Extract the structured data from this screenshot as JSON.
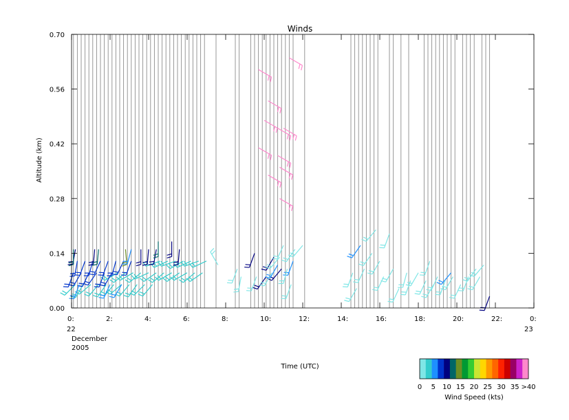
{
  "chart_data": {
    "type": "wind-barb-profile",
    "title": "Winds",
    "xlabel": "Time (UTC)",
    "ylabel": "Altitude (km)",
    "xlim_hours": [
      0,
      24
    ],
    "ylim": [
      0.0,
      0.7
    ],
    "x_tick_labels": [
      "0:",
      "2:",
      "4:",
      "6:",
      "8:",
      "10:",
      "12:",
      "14:",
      "16:",
      "18:",
      "20:",
      "22:",
      "0:"
    ],
    "y_tick_labels": [
      "0.00",
      "0.14",
      "0.28",
      "0.42",
      "0.56",
      "0.70"
    ],
    "date_labels": {
      "start_day": "22",
      "end_day": "23",
      "month": "December",
      "year": "2005"
    },
    "profile_times_hours": [
      0.1,
      0.3,
      0.5,
      0.7,
      0.9,
      1.1,
      1.3,
      1.5,
      1.7,
      1.9,
      2.1,
      2.3,
      2.5,
      2.7,
      2.9,
      3.1,
      3.3,
      3.5,
      3.7,
      3.9,
      4.1,
      4.3,
      4.5,
      4.7,
      4.9,
      5.1,
      5.3,
      5.5,
      5.7,
      5.9,
      6.1,
      6.3,
      6.5,
      6.7,
      6.9,
      7.5,
      8.5,
      8.7,
      9.3,
      9.5,
      9.7,
      9.9,
      10.1,
      10.3,
      10.5,
      10.7,
      10.9,
      11.1,
      11.3,
      11.5,
      12.1,
      14.5,
      14.7,
      14.9,
      15.1,
      15.3,
      15.5,
      15.7,
      15.9,
      16.5,
      16.7,
      17.1,
      17.5,
      18.3,
      18.5,
      18.7,
      18.9,
      19.1,
      19.3,
      19.5,
      19.7,
      19.9,
      20.3,
      20.5,
      20.7,
      20.9,
      21.3,
      21.5,
      21.7
    ],
    "colorbar": {
      "title": "Wind Speed (kts)",
      "colors": [
        "#7fe6e6",
        "#33cccc",
        "#1e90ff",
        "#0033cc",
        "#000080",
        "#006666",
        "#6b8e23",
        "#009933",
        "#33cc33",
        "#c8e632",
        "#ffd700",
        "#ff9900",
        "#ff6600",
        "#ff2200",
        "#cc0000",
        "#990066",
        "#cc22cc",
        "#ff88cc"
      ],
      "tick_labels": [
        "0",
        "5",
        "10",
        "15",
        "20",
        "25",
        "30",
        "35",
        ">40"
      ]
    },
    "series": [
      {
        "speed_color": "#33cccc",
        "points": [
          [
            0.2,
            0.06,
            225
          ],
          [
            0.6,
            0.06,
            210
          ],
          [
            1.0,
            0.06,
            230
          ],
          [
            1.4,
            0.06,
            220
          ],
          [
            1.8,
            0.06,
            215
          ],
          [
            2.2,
            0.06,
            220
          ],
          [
            2.6,
            0.06,
            230
          ],
          [
            3.0,
            0.06,
            220
          ],
          [
            3.4,
            0.06,
            215
          ],
          [
            3.8,
            0.06,
            225
          ],
          [
            4.2,
            0.06,
            220
          ],
          [
            2.4,
            0.09,
            240
          ],
          [
            2.8,
            0.09,
            230
          ],
          [
            3.2,
            0.09,
            240
          ],
          [
            3.6,
            0.09,
            230
          ],
          [
            4.0,
            0.09,
            245
          ],
          [
            4.4,
            0.09,
            235
          ],
          [
            4.8,
            0.09,
            230
          ],
          [
            5.2,
            0.09,
            240
          ],
          [
            5.6,
            0.09,
            235
          ],
          [
            6.0,
            0.09,
            240
          ],
          [
            6.4,
            0.09,
            230
          ],
          [
            6.8,
            0.09,
            235
          ],
          [
            4.6,
            0.12,
            250
          ],
          [
            5.0,
            0.12,
            245
          ],
          [
            5.4,
            0.12,
            250
          ],
          [
            5.8,
            0.12,
            240
          ],
          [
            6.2,
            0.12,
            245
          ],
          [
            6.6,
            0.12,
            250
          ],
          [
            7.0,
            0.12,
            245
          ]
        ]
      },
      {
        "speed_color": "#0033cc",
        "points": [
          [
            0.1,
            0.09,
            200
          ],
          [
            0.5,
            0.09,
            210
          ],
          [
            0.9,
            0.09,
            205
          ],
          [
            1.3,
            0.09,
            215
          ],
          [
            1.7,
            0.09,
            200
          ],
          [
            2.1,
            0.09,
            210
          ],
          [
            0.3,
            0.12,
            190
          ],
          [
            0.7,
            0.12,
            200
          ],
          [
            1.1,
            0.12,
            195
          ],
          [
            1.5,
            0.12,
            205
          ],
          [
            1.9,
            0.12,
            200
          ],
          [
            2.3,
            0.12,
            195
          ],
          [
            2.7,
            0.12,
            205
          ],
          [
            3.1,
            0.12,
            200
          ]
        ]
      },
      {
        "speed_color": "#000080",
        "points": [
          [
            0.2,
            0.15,
            190
          ],
          [
            1.2,
            0.15,
            185
          ],
          [
            3.6,
            0.15,
            180
          ],
          [
            4.0,
            0.15,
            185
          ],
          [
            4.4,
            0.15,
            190
          ],
          [
            5.6,
            0.15,
            185
          ],
          [
            5.2,
            0.17,
            180
          ],
          [
            9.5,
            0.14,
            200
          ],
          [
            10.5,
            0.13,
            210
          ],
          [
            10.9,
            0.1,
            220
          ],
          [
            10.1,
            0.08,
            215
          ],
          [
            21.7,
            0.03,
            200
          ]
        ]
      },
      {
        "speed_color": "#006666",
        "points": [
          [
            0.1,
            0.15,
            180
          ],
          [
            1.4,
            0.15,
            185
          ],
          [
            4.5,
            0.17,
            180
          ]
        ]
      },
      {
        "speed_color": "#6b8e23",
        "points": [
          [
            2.8,
            0.15,
            175
          ]
        ]
      },
      {
        "speed_color": "#1e90ff",
        "points": [
          [
            0.4,
            0.06,
            200
          ],
          [
            2.0,
            0.06,
            205
          ],
          [
            2.6,
            0.06,
            210
          ],
          [
            3.1,
            0.15,
            195
          ],
          [
            10.7,
            0.11,
            210
          ],
          [
            11.5,
            0.12,
            200
          ],
          [
            15.0,
            0.16,
            215
          ],
          [
            19.7,
            0.09,
            220
          ]
        ]
      },
      {
        "speed_color": "#7fe6e6",
        "points": [
          [
            7.6,
            0.11,
            330
          ],
          [
            8.6,
            0.1,
            200
          ],
          [
            8.8,
            0.08,
            190
          ],
          [
            9.6,
            0.08,
            200
          ],
          [
            10.4,
            0.09,
            210
          ],
          [
            10.8,
            0.13,
            220
          ],
          [
            11.0,
            0.16,
            205
          ],
          [
            11.2,
            0.1,
            195
          ],
          [
            11.4,
            0.06,
            200
          ],
          [
            11.6,
            0.15,
            215
          ],
          [
            12.0,
            0.16,
            220
          ],
          [
            14.6,
            0.09,
            200
          ],
          [
            14.8,
            0.05,
            210
          ],
          [
            15.2,
            0.1,
            205
          ],
          [
            15.6,
            0.14,
            215
          ],
          [
            15.8,
            0.2,
            220
          ],
          [
            16.0,
            0.12,
            210
          ],
          [
            16.2,
            0.08,
            205
          ],
          [
            16.5,
            0.19,
            200
          ],
          [
            16.7,
            0.1,
            210
          ],
          [
            17.0,
            0.05,
            205
          ],
          [
            17.4,
            0.09,
            195
          ],
          [
            17.6,
            0.07,
            200
          ],
          [
            18.0,
            0.09,
            210
          ],
          [
            18.4,
            0.07,
            205
          ],
          [
            18.6,
            0.12,
            200
          ],
          [
            18.8,
            0.06,
            210
          ],
          [
            19.0,
            0.08,
            205
          ],
          [
            19.4,
            0.07,
            200
          ],
          [
            19.8,
            0.08,
            210
          ],
          [
            20.2,
            0.06,
            205
          ],
          [
            20.6,
            0.08,
            200
          ],
          [
            21.0,
            0.1,
            215
          ],
          [
            21.2,
            0.08,
            210
          ],
          [
            21.4,
            0.11,
            220
          ]
        ]
      },
      {
        "speed_color": "#ff88cc",
        "points": [
          [
            9.7,
            0.61,
            120
          ],
          [
            10.2,
            0.53,
            120
          ],
          [
            10.0,
            0.48,
            120
          ],
          [
            9.7,
            0.41,
            120
          ],
          [
            10.2,
            0.34,
            120
          ],
          [
            10.7,
            0.46,
            120
          ],
          [
            11.0,
            0.46,
            120
          ],
          [
            10.7,
            0.39,
            120
          ],
          [
            10.8,
            0.36,
            120
          ],
          [
            10.8,
            0.28,
            120
          ],
          [
            11.3,
            0.64,
            120
          ]
        ]
      }
    ]
  }
}
